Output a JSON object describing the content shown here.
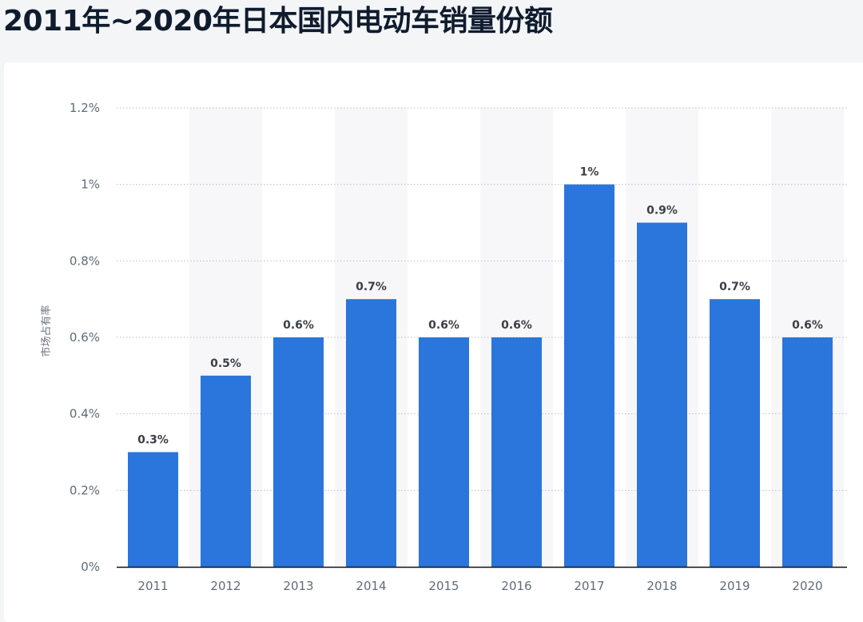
{
  "title": "2011年~2020年日本国内电动车销量份额",
  "chart_data": {
    "type": "bar",
    "categories": [
      "2011",
      "2012",
      "2013",
      "2014",
      "2015",
      "2016",
      "2017",
      "2018",
      "2019",
      "2020"
    ],
    "values": [
      0.3,
      0.5,
      0.6,
      0.7,
      0.6,
      0.6,
      1.0,
      0.9,
      0.7,
      0.6
    ],
    "data_labels": [
      "0.3%",
      "0.5%",
      "0.6%",
      "0.7%",
      "0.6%",
      "0.6%",
      "1%",
      "0.9%",
      "0.7%",
      "0.6%"
    ],
    "ylabel": "市场占有率",
    "xlabel": "",
    "ylim": [
      0,
      1.2
    ],
    "yticks": [
      0,
      0.2,
      0.4,
      0.6,
      0.8,
      1.0,
      1.2
    ],
    "ytick_labels": [
      "0%",
      "0.2%",
      "0.4%",
      "0.6%",
      "0.8%",
      "1%",
      "1.2%"
    ],
    "grid": true,
    "bar_color": "#2a76dc",
    "band_color": "#f7f7f9"
  }
}
